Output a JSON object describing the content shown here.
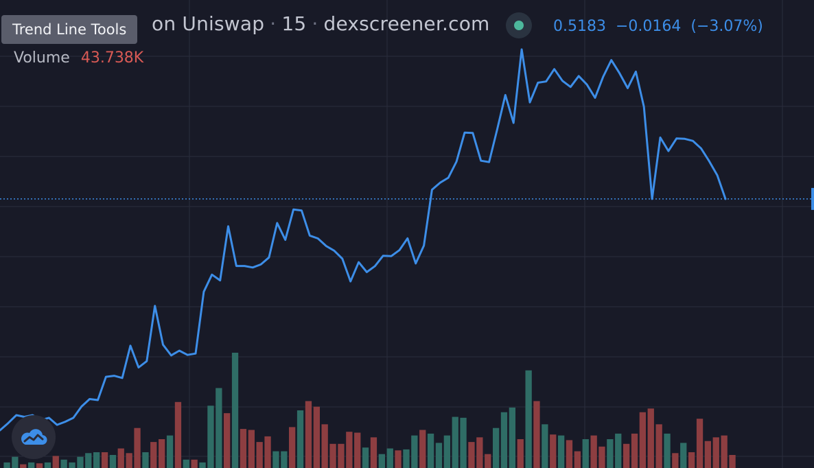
{
  "header": {
    "pair": "on Uniswap",
    "interval": "15",
    "source": "dexscreener.com",
    "separator": "·",
    "status_color": "#4db89c",
    "price": "0.5183",
    "change": "−0.0164",
    "change_pct": "(−3.07%)"
  },
  "tooltip": {
    "label": "Trend Line Tools"
  },
  "volume": {
    "label": "Volume",
    "value": "43.738K"
  },
  "logo": {
    "icon": "cloud-chart-icon"
  },
  "colors": {
    "background": "#181a27",
    "grid": "#2a2d3c",
    "line": "#3d8ee8",
    "up_volume": "#2f6d66",
    "down_volume": "#8d3e41",
    "last_price_line": "#3d8ee8"
  },
  "chart_data": {
    "type": "line",
    "title": "",
    "xlabel": "",
    "ylabel": "",
    "grid": true,
    "series": [
      {
        "values": [
          0.382,
          0.3862,
          0.3909,
          0.3899,
          0.3909,
          0.388,
          0.3893,
          0.3852,
          0.387,
          0.3893,
          0.396,
          0.4004,
          0.3998,
          0.4135,
          0.4141,
          0.4128,
          0.4318,
          0.419,
          0.4227,
          0.4553,
          0.4324,
          0.4261,
          0.4289,
          0.4264,
          0.4272,
          0.4636,
          0.4737,
          0.4703,
          0.5022,
          0.4788,
          0.4788,
          0.4779,
          0.4797,
          0.4838,
          0.5041,
          0.4942,
          0.5121,
          0.5115,
          0.4967,
          0.495,
          0.4906,
          0.4878,
          0.4831,
          0.4697,
          0.481,
          0.4752,
          0.4787,
          0.4848,
          0.4846,
          0.4881,
          0.4951,
          0.4803,
          0.4908,
          0.5237,
          0.5279,
          0.5308,
          0.5403,
          0.5574,
          0.5572,
          0.5408,
          0.54,
          0.5594,
          0.5795,
          0.5631,
          0.6064,
          0.5752,
          0.5868,
          0.5875,
          0.5948,
          0.5879,
          0.5843,
          0.5907,
          0.5857,
          0.5779,
          0.5904,
          0.6001,
          0.5924,
          0.5836,
          0.5933,
          0.5726,
          0.5183,
          0.5545,
          0.5465,
          0.5539,
          0.5537,
          0.5525,
          0.5481,
          0.5406,
          0.5322,
          0.5183
        ]
      }
    ],
    "volume": {
      "values": [
        0.6,
        1.2,
        0.4,
        0.6,
        0.5,
        0.6,
        1.3,
        0.9,
        0.6,
        1.2,
        1.6,
        1.7,
        1.7,
        1.4,
        2.1,
        1.6,
        4.3,
        1.7,
        2.8,
        3.1,
        3.5,
        7.1,
        0.9,
        0.9,
        0.6,
        6.7,
        8.6,
        5.9,
        12.4,
        4.2,
        4.1,
        2.8,
        3.4,
        1.8,
        1.8,
        4.4,
        6.2,
        7.2,
        6.6,
        4.7,
        2.6,
        2.6,
        3.9,
        3.8,
        2.2,
        3.3,
        1.5,
        2.1,
        1.9,
        2.0,
        3.5,
        4.1,
        3.7,
        2.7,
        3.5,
        5.5,
        5.4,
        2.8,
        3.3,
        1.5,
        4.3,
        6.0,
        6.5,
        3.1,
        10.5,
        7.2,
        4.7,
        3.6,
        3.5,
        3.0,
        1.8,
        3.1,
        3.5,
        2.3,
        3.1,
        3.7,
        2.6,
        3.7,
        6.0,
        6.4,
        4.7,
        3.7,
        1.6,
        2.7,
        1.7,
        5.3,
        2.9,
        3.3,
        3.5,
        1.4
      ],
      "directions": [
        "up",
        "up",
        "down",
        "up",
        "down",
        "up",
        "down",
        "up",
        "up",
        "up",
        "up",
        "up",
        "down",
        "up",
        "down",
        "down",
        "down",
        "up",
        "down",
        "down",
        "up",
        "down",
        "up",
        "down",
        "up",
        "up",
        "up",
        "down",
        "up",
        "down",
        "down",
        "down",
        "down",
        "up",
        "up",
        "down",
        "up",
        "down",
        "down",
        "down",
        "down",
        "down",
        "down",
        "down",
        "up",
        "down",
        "up",
        "up",
        "down",
        "up",
        "up",
        "down",
        "up",
        "up",
        "up",
        "up",
        "up",
        "down",
        "down",
        "down",
        "up",
        "up",
        "up",
        "down",
        "up",
        "down",
        "up",
        "down",
        "up",
        "down",
        "down",
        "up",
        "down",
        "down",
        "up",
        "up",
        "down",
        "down",
        "down",
        "down",
        "down",
        "up",
        "down",
        "up",
        "down",
        "down",
        "down",
        "down",
        "down",
        "down"
      ]
    },
    "last_price": 0.5183
  }
}
